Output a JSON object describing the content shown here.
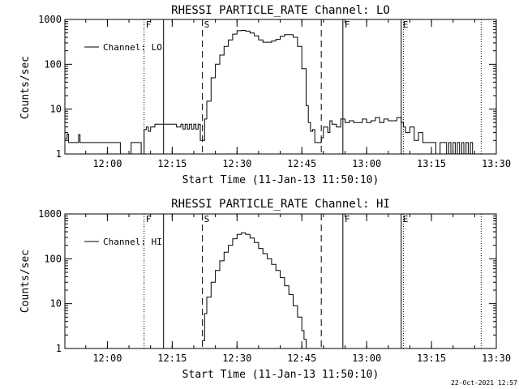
{
  "footer": {
    "timestamp": "22-Oct-2021 12:57"
  },
  "chart_data": [
    {
      "type": "line",
      "title": "RHESSI PARTICLE_RATE Channel: LO",
      "xlabel": "Start Time (11-Jan-13 11:50:10)",
      "ylabel": "Counts/sec",
      "y_scale": "log",
      "ylim": [
        1,
        1000
      ],
      "xlim": [
        "11:50:10",
        "13:30:00"
      ],
      "xtick_labels": [
        "12:00",
        "12:15",
        "12:30",
        "12:45",
        "13:00",
        "13:15",
        "13:30"
      ],
      "ytick_labels": [
        "1",
        "10",
        "100",
        "1000"
      ],
      "legend": {
        "position": "top-left",
        "entries": [
          "Channel: LO"
        ]
      },
      "markers": [
        {
          "label": "F",
          "time": "12:08:30",
          "style": "dotted"
        },
        {
          "label": "",
          "time": "12:13:00",
          "style": "solid"
        },
        {
          "label": "S",
          "time": "12:22:00",
          "style": "dashed"
        },
        {
          "label": "",
          "time": "12:49:30",
          "style": "dashed"
        },
        {
          "label": "F",
          "time": "12:54:30",
          "style": "solid"
        },
        {
          "label": "E",
          "time": "13:08:00",
          "style": "solid"
        },
        {
          "label": "",
          "time": "13:08:30",
          "style": "dotted"
        },
        {
          "label": "",
          "time": "13:26:30",
          "style": "dotted"
        }
      ],
      "series": [
        {
          "name": "Channel: LO",
          "points": [
            [
              "11:50:10",
              2.2
            ],
            [
              "11:50:40",
              2.8
            ],
            [
              "11:51:00",
              1.8
            ],
            [
              "11:53:00",
              1.8
            ],
            [
              "11:53:20",
              2.7
            ],
            [
              "11:53:40",
              1.8
            ],
            [
              "11:57:00",
              1.8
            ],
            [
              "11:57:30",
              1.8
            ],
            [
              "12:02:30",
              1.8
            ],
            [
              "12:03:00",
              1.0
            ],
            [
              "12:05:00",
              1.0
            ],
            [
              "12:05:30",
              1.8
            ],
            [
              "12:07:30",
              1.8
            ],
            [
              "12:07:50",
              1.0
            ],
            [
              "12:08:10",
              1.0
            ],
            [
              "12:08:30",
              3.5
            ],
            [
              "12:09:00",
              4.0
            ],
            [
              "12:09:30",
              3.2
            ],
            [
              "12:10:00",
              4.0
            ],
            [
              "12:11:00",
              4.6
            ],
            [
              "12:12:00",
              4.6
            ],
            [
              "12:14:00",
              4.6
            ],
            [
              "12:15:00",
              4.6
            ],
            [
              "12:16:00",
              4.0
            ],
            [
              "12:17:00",
              4.6
            ],
            [
              "12:17:30",
              3.6
            ],
            [
              "12:18:00",
              4.6
            ],
            [
              "12:18:30",
              3.6
            ],
            [
              "12:19:00",
              4.6
            ],
            [
              "12:19:30",
              3.6
            ],
            [
              "12:20:00",
              4.6
            ],
            [
              "12:20:30",
              3.6
            ],
            [
              "12:21:00",
              4.6
            ],
            [
              "12:21:30",
              2.0
            ],
            [
              "12:22:00",
              2.0
            ],
            [
              "12:22:30",
              6.0
            ],
            [
              "12:23:00",
              15
            ],
            [
              "12:24:00",
              50
            ],
            [
              "12:25:00",
              100
            ],
            [
              "12:26:00",
              160
            ],
            [
              "12:27:00",
              250
            ],
            [
              "12:28:00",
              350
            ],
            [
              "12:29:00",
              470
            ],
            [
              "12:30:00",
              560
            ],
            [
              "12:31:00",
              570
            ],
            [
              "12:32:00",
              550
            ],
            [
              "12:33:00",
              500
            ],
            [
              "12:34:00",
              430
            ],
            [
              "12:35:00",
              350
            ],
            [
              "12:36:00",
              310
            ],
            [
              "12:37:00",
              310
            ],
            [
              "12:38:00",
              330
            ],
            [
              "12:39:00",
              360
            ],
            [
              "12:40:00",
              420
            ],
            [
              "12:41:00",
              460
            ],
            [
              "12:42:00",
              460
            ],
            [
              "12:43:00",
              400
            ],
            [
              "12:44:00",
              250
            ],
            [
              "12:45:00",
              80
            ],
            [
              "12:46:00",
              12
            ],
            [
              "12:46:30",
              5.0
            ],
            [
              "12:47:00",
              3.2
            ],
            [
              "12:47:30",
              3.5
            ],
            [
              "12:48:00",
              1.8
            ],
            [
              "12:49:00",
              1.8
            ],
            [
              "12:49:30",
              2.3
            ],
            [
              "12:50:00",
              4.0
            ],
            [
              "12:51:00",
              3.0
            ],
            [
              "12:51:30",
              5.5
            ],
            [
              "12:52:00",
              4.6
            ],
            [
              "12:53:00",
              4.0
            ],
            [
              "12:54:00",
              6.0
            ],
            [
              "12:55:00",
              5.0
            ],
            [
              "12:56:00",
              5.5
            ],
            [
              "12:57:00",
              5.0
            ],
            [
              "12:58:00",
              5.0
            ],
            [
              "12:59:00",
              6.0
            ],
            [
              "13:00:00",
              5.0
            ],
            [
              "13:01:00",
              5.5
            ],
            [
              "13:02:00",
              6.5
            ],
            [
              "13:03:00",
              5.0
            ],
            [
              "13:04:00",
              6.0
            ],
            [
              "13:05:00",
              5.5
            ],
            [
              "13:06:00",
              5.5
            ],
            [
              "13:07:00",
              6.5
            ],
            [
              "13:08:00",
              5.0
            ],
            [
              "13:08:30",
              4.0
            ],
            [
              "13:09:00",
              3.0
            ],
            [
              "13:10:00",
              4.0
            ],
            [
              "13:11:00",
              2.0
            ],
            [
              "13:12:00",
              3.0
            ],
            [
              "13:13:00",
              1.8
            ],
            [
              "13:14:00",
              1.8
            ],
            [
              "13:15:00",
              1.8
            ],
            [
              "13:16:00",
              1.0
            ],
            [
              "13:17:00",
              1.8
            ],
            [
              "13:18:00",
              1.8
            ],
            [
              "13:18:30",
              1.0
            ],
            [
              "13:19:00",
              1.8
            ],
            [
              "13:19:30",
              1.0
            ],
            [
              "13:20:00",
              1.8
            ],
            [
              "13:20:30",
              1.0
            ],
            [
              "13:21:00",
              1.8
            ],
            [
              "13:21:30",
              1.0
            ],
            [
              "13:22:00",
              1.8
            ],
            [
              "13:22:30",
              1.0
            ],
            [
              "13:23:00",
              1.8
            ],
            [
              "13:23:30",
              1.0
            ],
            [
              "13:24:00",
              1.8
            ],
            [
              "13:24:30",
              1.0
            ]
          ]
        }
      ]
    },
    {
      "type": "line",
      "title": "RHESSI PARTICLE_RATE Channel: HI",
      "xlabel": "Start Time (11-Jan-13 11:50:10)",
      "ylabel": "Counts/sec",
      "y_scale": "log",
      "ylim": [
        1,
        1000
      ],
      "xlim": [
        "11:50:10",
        "13:30:00"
      ],
      "xtick_labels": [
        "12:00",
        "12:15",
        "12:30",
        "12:45",
        "13:00",
        "13:15",
        "13:30"
      ],
      "ytick_labels": [
        "1",
        "10",
        "100",
        "1000"
      ],
      "legend": {
        "position": "top-left",
        "entries": [
          "Channel: HI"
        ]
      },
      "markers": [
        {
          "label": "F",
          "time": "12:08:30",
          "style": "dotted"
        },
        {
          "label": "",
          "time": "12:13:00",
          "style": "solid"
        },
        {
          "label": "S",
          "time": "12:22:00",
          "style": "dashed"
        },
        {
          "label": "",
          "time": "12:49:30",
          "style": "dashed"
        },
        {
          "label": "F",
          "time": "12:54:30",
          "style": "solid"
        },
        {
          "label": "E",
          "time": "13:08:00",
          "style": "solid"
        },
        {
          "label": "",
          "time": "13:08:30",
          "style": "dotted"
        },
        {
          "label": "",
          "time": "13:26:30",
          "style": "dotted"
        }
      ],
      "series": [
        {
          "name": "Channel: HI",
          "points": [
            [
              "12:22:00",
              1.5
            ],
            [
              "12:22:30",
              6.0
            ],
            [
              "12:23:00",
              14
            ],
            [
              "12:24:00",
              30
            ],
            [
              "12:25:00",
              55
            ],
            [
              "12:26:00",
              90
            ],
            [
              "12:27:00",
              140
            ],
            [
              "12:28:00",
              200
            ],
            [
              "12:29:00",
              280
            ],
            [
              "12:30:00",
              350
            ],
            [
              "12:31:00",
              380
            ],
            [
              "12:32:00",
              350
            ],
            [
              "12:33:00",
              290
            ],
            [
              "12:34:00",
              230
            ],
            [
              "12:35:00",
              170
            ],
            [
              "12:36:00",
              130
            ],
            [
              "12:37:00",
              100
            ],
            [
              "12:38:00",
              75
            ],
            [
              "12:39:00",
              55
            ],
            [
              "12:40:00",
              38
            ],
            [
              "12:41:00",
              25
            ],
            [
              "12:42:00",
              16
            ],
            [
              "12:43:00",
              9
            ],
            [
              "12:44:00",
              5
            ],
            [
              "12:45:00",
              2.5
            ],
            [
              "12:45:30",
              1.6
            ],
            [
              "12:46:00",
              1.0
            ]
          ]
        }
      ]
    }
  ]
}
